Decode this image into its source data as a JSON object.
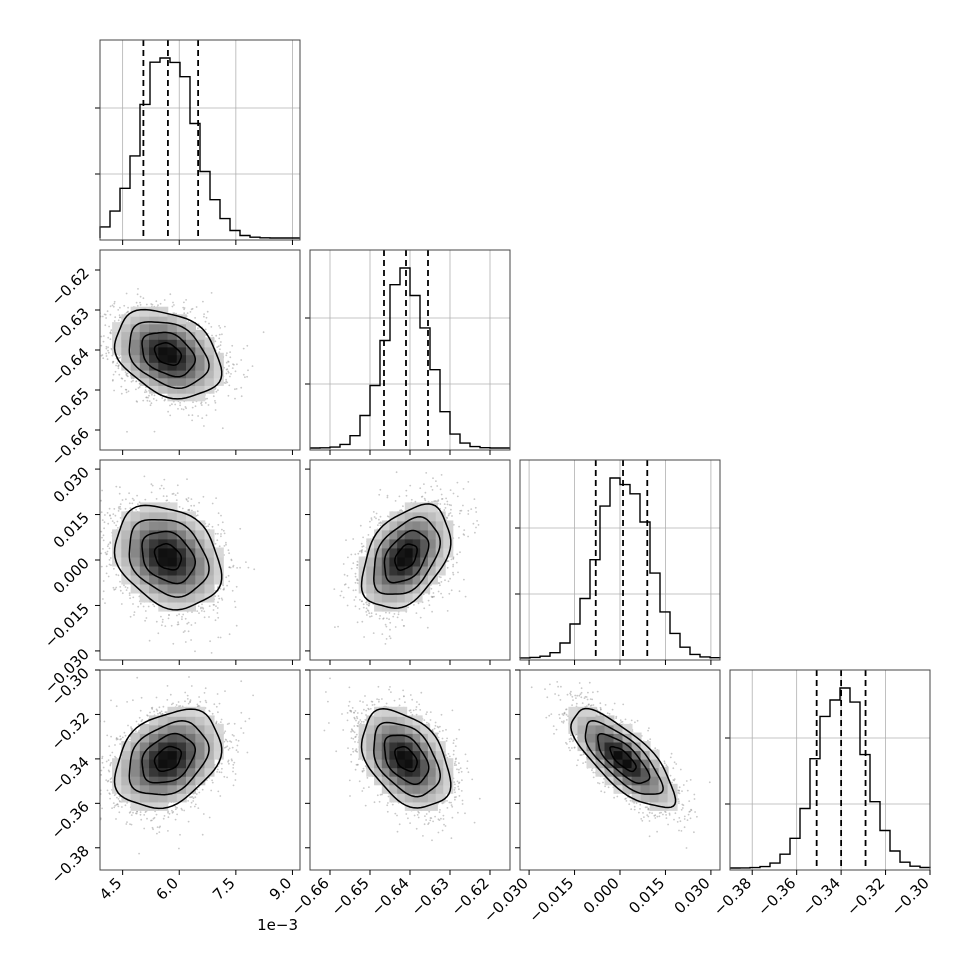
{
  "chart_data": {
    "type": "corner",
    "parameters": [
      {
        "median": 5.7,
        "q16": 5.05,
        "q84": 6.5,
        "sigma": 0.7,
        "range": [
          3.9,
          9.2
        ],
        "ticks": [
          4.5,
          6.0,
          7.5,
          9.0
        ],
        "tick_labels": [
          "4.5",
          "6.0",
          "7.5",
          "9.0"
        ],
        "offset_label": "1e−3"
      },
      {
        "median": -0.641,
        "q16": -0.6465,
        "q84": -0.6355,
        "sigma": 0.0055,
        "range": [
          -0.665,
          -0.615
        ],
        "ticks": [
          -0.66,
          -0.65,
          -0.64,
          -0.63,
          -0.62
        ],
        "tick_labels": [
          "−0.66",
          "−0.65",
          "−0.64",
          "−0.63",
          "−0.62"
        ]
      },
      {
        "median": 0.001,
        "q16": -0.008,
        "q84": 0.009,
        "sigma": 0.0085,
        "range": [
          -0.033,
          0.033
        ],
        "ticks": [
          -0.03,
          -0.015,
          0.0,
          0.015,
          0.03
        ],
        "tick_labels": [
          "−0.030",
          "−0.015",
          "0.000",
          "0.015",
          "0.030"
        ]
      },
      {
        "median": -0.34,
        "q16": -0.351,
        "q84": -0.329,
        "sigma": 0.011,
        "range": [
          -0.39,
          -0.3
        ],
        "ticks": [
          -0.38,
          -0.36,
          -0.34,
          -0.32,
          -0.3
        ],
        "tick_labels": [
          "−0.38",
          "−0.36",
          "−0.34",
          "−0.32",
          "−0.30"
        ]
      }
    ],
    "correlations": [
      {
        "pair": [
          0,
          1
        ],
        "rho": -0.3
      },
      {
        "pair": [
          0,
          2
        ],
        "rho": -0.25
      },
      {
        "pair": [
          1,
          2
        ],
        "rho": 0.4
      },
      {
        "pair": [
          0,
          3
        ],
        "rho": 0.3
      },
      {
        "pair": [
          1,
          3
        ],
        "rho": -0.4
      },
      {
        "pair": [
          2,
          3
        ],
        "rho": -0.75
      }
    ],
    "quantile_lines": "dashed",
    "grid": true,
    "legend": "none"
  }
}
